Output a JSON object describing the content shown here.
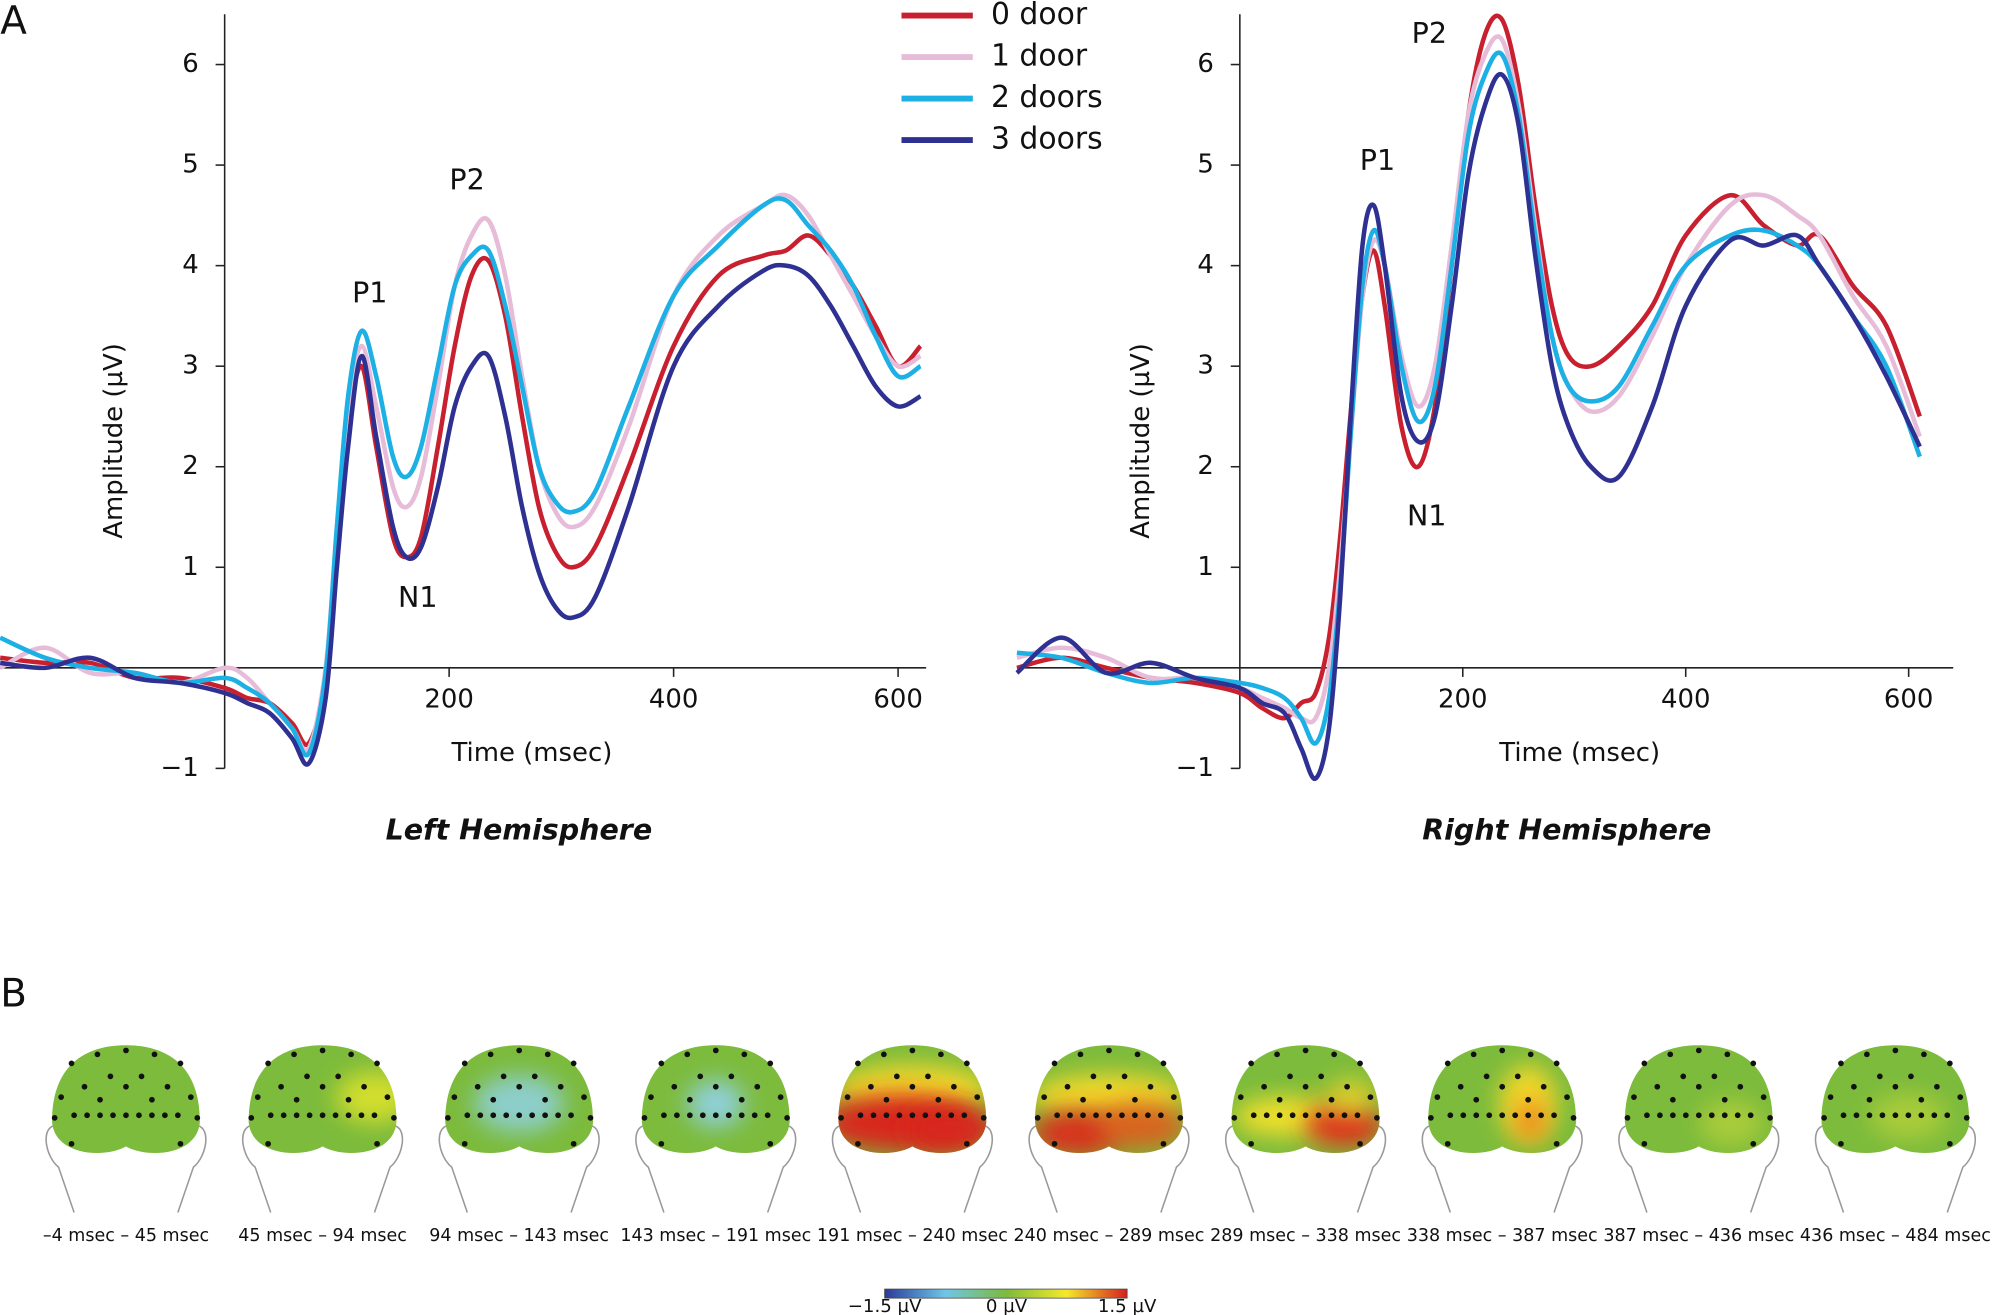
{
  "panel_labels": [
    "A",
    "B"
  ],
  "chart_data": [
    {
      "type": "line",
      "title": "Left Hemisphere",
      "x_label": "Time (msec)",
      "y_label": "Amplitude (µV)",
      "x": [
        -200,
        -160,
        -120,
        -80,
        -40,
        0,
        20,
        40,
        60,
        75,
        90,
        100,
        110,
        122,
        135,
        150,
        162,
        175,
        190,
        205,
        220,
        235,
        250,
        265,
        280,
        295,
        310,
        330,
        360,
        400,
        440,
        480,
        500,
        520,
        540,
        560,
        580,
        600,
        620
      ],
      "series": [
        {
          "name": "0 door",
          "color": "#c8202e",
          "values": [
            0.1,
            0.05,
            0.05,
            -0.1,
            -0.1,
            -0.2,
            -0.3,
            -0.35,
            -0.55,
            -0.75,
            -0.1,
            1.3,
            2.4,
            3.0,
            2.2,
            1.3,
            1.1,
            1.3,
            2.2,
            3.2,
            3.9,
            4.05,
            3.5,
            2.5,
            1.6,
            1.15,
            1.0,
            1.2,
            2.0,
            3.2,
            3.9,
            4.1,
            4.15,
            4.3,
            4.1,
            3.8,
            3.4,
            3.0,
            3.2
          ]
        },
        {
          "name": "1 door",
          "color": "#e6bcd9",
          "values": [
            0.0,
            0.2,
            -0.05,
            -0.05,
            -0.15,
            0.0,
            -0.1,
            -0.35,
            -0.6,
            -0.8,
            0.0,
            1.4,
            2.6,
            3.2,
            2.6,
            1.8,
            1.6,
            1.9,
            2.8,
            3.8,
            4.3,
            4.45,
            3.9,
            2.9,
            2.0,
            1.55,
            1.4,
            1.6,
            2.4,
            3.7,
            4.3,
            4.6,
            4.7,
            4.5,
            4.1,
            3.7,
            3.3,
            3.0,
            3.1
          ]
        },
        {
          "name": "2 doors",
          "color": "#1cb0e4",
          "values": [
            0.3,
            0.1,
            0.0,
            -0.05,
            -0.15,
            -0.1,
            -0.2,
            -0.35,
            -0.6,
            -0.85,
            -0.05,
            1.4,
            2.7,
            3.35,
            2.9,
            2.1,
            1.9,
            2.2,
            3.0,
            3.8,
            4.1,
            4.15,
            3.6,
            2.8,
            2.0,
            1.65,
            1.55,
            1.75,
            2.6,
            3.7,
            4.2,
            4.6,
            4.65,
            4.4,
            4.15,
            3.8,
            3.3,
            2.9,
            3.0
          ]
        },
        {
          "name": "3 doors",
          "color": "#2e3192",
          "values": [
            0.05,
            0.0,
            0.1,
            -0.1,
            -0.15,
            -0.25,
            -0.35,
            -0.45,
            -0.7,
            -0.95,
            -0.3,
            1.0,
            2.2,
            3.1,
            2.3,
            1.4,
            1.1,
            1.2,
            1.8,
            2.6,
            3.0,
            3.1,
            2.5,
            1.6,
            0.95,
            0.6,
            0.5,
            0.7,
            1.6,
            3.0,
            3.6,
            3.95,
            4.0,
            3.9,
            3.6,
            3.2,
            2.8,
            2.6,
            2.7
          ]
        }
      ],
      "xlim": [
        -200,
        625
      ],
      "ylim": [
        -1,
        6.5
      ],
      "xticks": [
        200,
        400,
        600
      ],
      "yticks": [
        {
          "value": -1,
          "label": "−1"
        },
        1,
        2,
        3,
        4,
        5,
        6
      ],
      "annotations": [
        "P1",
        "N1",
        "P2"
      ],
      "legend": true
    },
    {
      "type": "line",
      "title": "Right Hemisphere",
      "x_label": "Time (msec)",
      "y_label": "Amplitude (µV)",
      "x": [
        -200,
        -160,
        -120,
        -80,
        -40,
        0,
        20,
        40,
        55,
        68,
        80,
        90,
        100,
        110,
        120,
        130,
        145,
        160,
        175,
        190,
        205,
        220,
        235,
        250,
        265,
        280,
        295,
        315,
        340,
        370,
        400,
        440,
        470,
        500,
        520,
        550,
        580,
        610
      ],
      "series": [
        {
          "name": "0 door",
          "color": "#c8202e",
          "values": [
            0.0,
            0.1,
            0.0,
            -0.1,
            -0.15,
            -0.25,
            -0.4,
            -0.5,
            -0.35,
            -0.25,
            0.3,
            1.3,
            2.6,
            3.7,
            4.15,
            3.6,
            2.4,
            2.0,
            2.6,
            4.0,
            5.5,
            6.3,
            6.45,
            5.8,
            4.6,
            3.6,
            3.1,
            3.0,
            3.2,
            3.6,
            4.3,
            4.7,
            4.4,
            4.2,
            4.3,
            3.8,
            3.4,
            2.5
          ]
        },
        {
          "name": "1 door",
          "color": "#e6bcd9",
          "values": [
            0.1,
            0.2,
            0.1,
            -0.1,
            -0.1,
            -0.2,
            -0.3,
            -0.4,
            -0.5,
            -0.5,
            0.0,
            1.0,
            2.4,
            3.7,
            4.25,
            4.0,
            3.1,
            2.6,
            3.0,
            4.2,
            5.5,
            6.1,
            6.25,
            5.6,
            4.4,
            3.3,
            2.8,
            2.55,
            2.7,
            3.3,
            4.0,
            4.6,
            4.7,
            4.5,
            4.3,
            3.7,
            3.2,
            2.3
          ]
        },
        {
          "name": "2 doors",
          "color": "#1cb0e4",
          "values": [
            0.15,
            0.1,
            -0.05,
            -0.15,
            -0.1,
            -0.15,
            -0.2,
            -0.3,
            -0.5,
            -0.75,
            -0.3,
            0.8,
            2.4,
            3.8,
            4.35,
            4.0,
            3.0,
            2.45,
            2.8,
            4.0,
            5.3,
            5.9,
            6.1,
            5.5,
            4.3,
            3.3,
            2.8,
            2.65,
            2.8,
            3.4,
            4.0,
            4.3,
            4.35,
            4.2,
            4.0,
            3.5,
            3.0,
            2.1
          ]
        },
        {
          "name": "3 doors",
          "color": "#2e3192",
          "values": [
            -0.05,
            0.3,
            -0.05,
            0.05,
            -0.1,
            -0.2,
            -0.35,
            -0.45,
            -0.8,
            -1.1,
            -0.6,
            0.7,
            2.6,
            4.2,
            4.6,
            4.0,
            2.7,
            2.25,
            2.5,
            3.6,
            4.9,
            5.6,
            5.9,
            5.4,
            4.1,
            3.0,
            2.4,
            2.0,
            1.9,
            2.6,
            3.6,
            4.25,
            4.2,
            4.3,
            4.0,
            3.5,
            2.9,
            2.2
          ]
        }
      ],
      "xlim": [
        -200,
        640
      ],
      "ylim": [
        -1,
        6.5
      ],
      "xticks": [
        200,
        400,
        600
      ],
      "yticks": [
        {
          "value": -1,
          "label": "−1"
        },
        1,
        2,
        3,
        4,
        5,
        6
      ],
      "annotations": [
        "P1",
        "N1",
        "P2"
      ],
      "legend": false
    }
  ],
  "topomaps": {
    "windows": [
      "–4 msec – 45 msec",
      "45 msec – 94 msec",
      "94 msec – 143 msec",
      "143 msec – 191 msec",
      "191 msec – 240 msec",
      "240 msec – 289 msec",
      "289 msec – 338 msec",
      "338 msec – 387 msec",
      "387 msec – 436 msec",
      "436 msec – 484 msec"
    ],
    "colorbar": {
      "labels": [
        "−1.5 µV",
        "0 µV",
        "1.5 µV"
      ]
    }
  }
}
